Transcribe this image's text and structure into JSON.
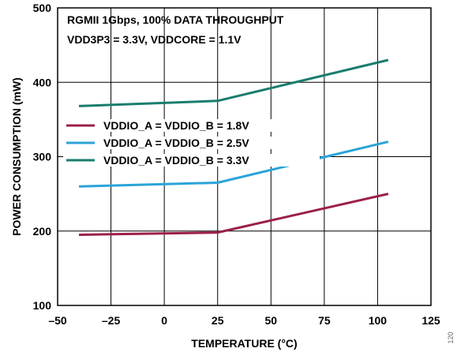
{
  "chart_data": {
    "type": "line",
    "annotations": [
      "RGMII 1Gbps, 100% DATA THROUGHPUT",
      "VDD3P3 = 3.3V, VDDCORE = 1.1V"
    ],
    "xlabel": "TEMPERATURE (°C)",
    "ylabel": "POWER CONSUMPTION (mW)",
    "xlim": [
      -50,
      125
    ],
    "ylim": [
      100,
      500
    ],
    "xticks": [
      -50,
      -25,
      0,
      25,
      50,
      75,
      100,
      125
    ],
    "yticks": [
      100,
      200,
      300,
      400,
      500
    ],
    "xtick_labels": [
      "–50",
      "–25",
      "0",
      "25",
      "50",
      "75",
      "100",
      "125"
    ],
    "ytick_labels": [
      "100",
      "200",
      "300",
      "400",
      "500"
    ],
    "grid": true,
    "legend_position": "middle-left",
    "series": [
      {
        "name": "VDDIO_A = VDDIO_B = 1.8V",
        "color": "#9b2048",
        "x": [
          -40,
          25,
          105
        ],
        "y": [
          195,
          198,
          250
        ]
      },
      {
        "name": "VDDIO_A = VDDIO_B = 2.5V",
        "color": "#2aa4d8",
        "x": [
          -40,
          25,
          105
        ],
        "y": [
          260,
          265,
          320
        ]
      },
      {
        "name": "VDDIO_A = VDDIO_B = 3.3V",
        "color": "#1a7d6e",
        "x": [
          -40,
          25,
          105
        ],
        "y": [
          368,
          375,
          430
        ]
      }
    ]
  },
  "figure_id": "120"
}
